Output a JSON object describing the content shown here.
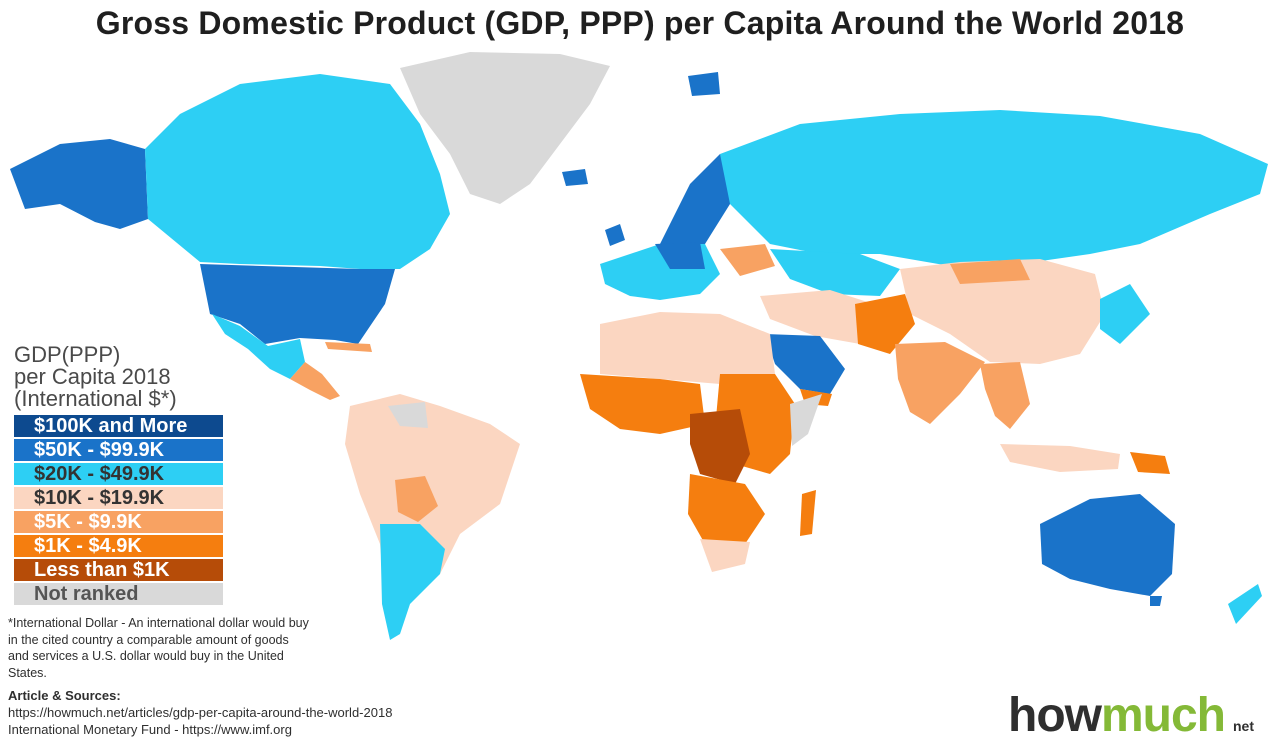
{
  "title": "Gross Domestic Product (GDP, PPP) per Capita Around the World 2018",
  "legend": {
    "title_lines": [
      "GDP(PPP)",
      "per Capita 2018",
      "(International $*)"
    ],
    "items": [
      {
        "label": "$100K and More",
        "color": "#0d4a8f",
        "text_color": "#ffffff"
      },
      {
        "label": "$50K - $99.9K",
        "color": "#1a73c9",
        "text_color": "#ffffff"
      },
      {
        "label": "$20K - $49.9K",
        "color": "#2dcff4",
        "text_color": "#333333"
      },
      {
        "label": "$10K - $19.9K",
        "color": "#fbd6c1",
        "text_color": "#333333"
      },
      {
        "label": "$5K - $9.9K",
        "color": "#f8a262",
        "text_color": "#ffffff"
      },
      {
        "label": "$1K - $4.9K",
        "color": "#f57e0f",
        "text_color": "#ffffff"
      },
      {
        "label": "Less than $1K",
        "color": "#b64c08",
        "text_color": "#ffffff"
      },
      {
        "label": "Not ranked",
        "color": "#d9d9d9",
        "text_color": "#555555"
      }
    ]
  },
  "footnote": "*International Dollar - An international dollar would buy in the cited country a comparable amount of goods and services a U.S. dollar would buy in the United States.",
  "sources": {
    "heading": "Article & Sources:",
    "lines": [
      "https://howmuch.net/articles/gdp-per-capita-around-the-world-2018",
      "International Monetary Fund - https://www.imf.org"
    ]
  },
  "logo": {
    "part1": "how",
    "part2": "much",
    "suffix": "net"
  }
}
